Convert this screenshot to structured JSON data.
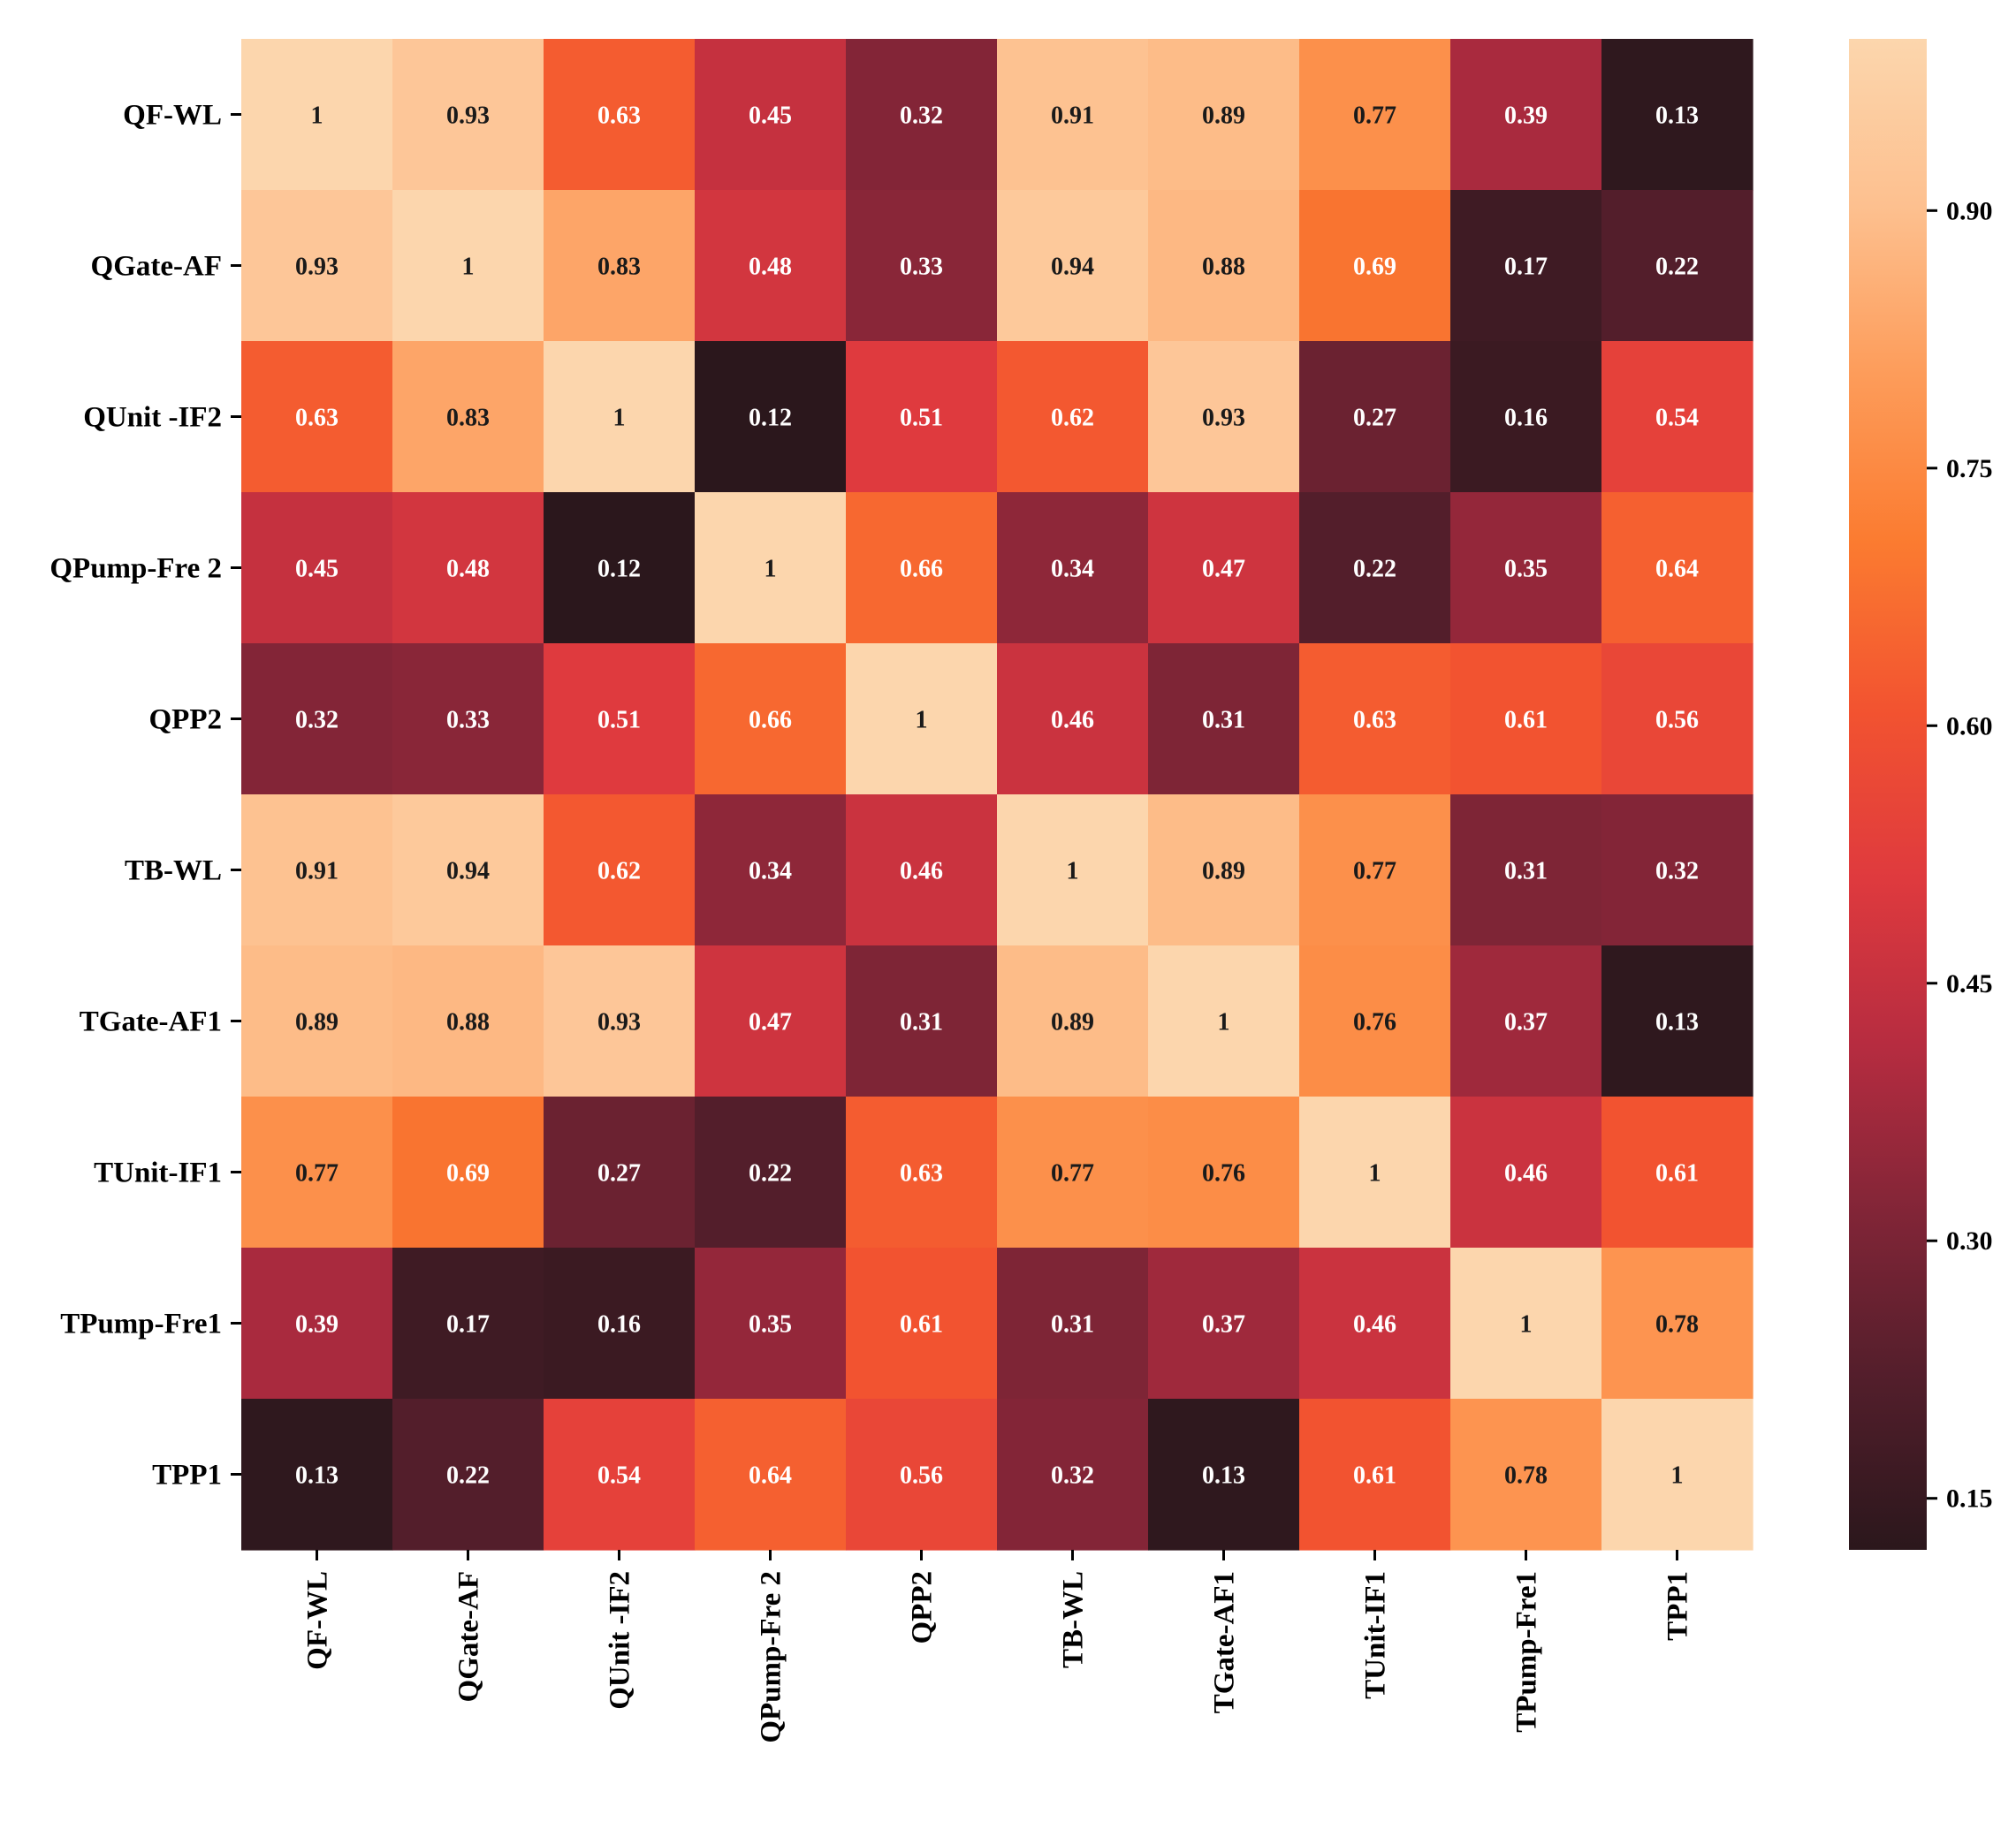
{
  "chart_data": {
    "type": "heatmap",
    "title": "",
    "xlabel": "",
    "ylabel": "",
    "row_labels": [
      "QF-WL",
      "QGate-AF",
      "QUnit -IF2",
      "QPump-Fre 2",
      "QPP2",
      "TB-WL",
      "TGate-AF1",
      "TUnit-IF1",
      "TPump-Fre1",
      "TPP1"
    ],
    "col_labels": [
      "QF-WL",
      "QGate-AF",
      "QUnit -IF2",
      "QPump-Fre 2",
      "QPP2",
      "TB-WL",
      "TGate-AF1",
      "TUnit-IF1",
      "TPump-Fre1",
      "TPP1"
    ],
    "values": [
      [
        1,
        0.93,
        0.63,
        0.45,
        0.32,
        0.91,
        0.89,
        0.77,
        0.39,
        0.13
      ],
      [
        0.93,
        1,
        0.83,
        0.48,
        0.33,
        0.94,
        0.88,
        0.69,
        0.17,
        0.22
      ],
      [
        0.63,
        0.83,
        1,
        0.12,
        0.51,
        0.62,
        0.93,
        0.27,
        0.16,
        0.54
      ],
      [
        0.45,
        0.48,
        0.12,
        1,
        0.66,
        0.34,
        0.47,
        0.22,
        0.35,
        0.64
      ],
      [
        0.32,
        0.33,
        0.51,
        0.66,
        1,
        0.46,
        0.31,
        0.63,
        0.61,
        0.56
      ],
      [
        0.91,
        0.94,
        0.62,
        0.34,
        0.46,
        1,
        0.89,
        0.77,
        0.31,
        0.32
      ],
      [
        0.89,
        0.88,
        0.93,
        0.47,
        0.31,
        0.89,
        1,
        0.76,
        0.37,
        0.13
      ],
      [
        0.77,
        0.69,
        0.27,
        0.22,
        0.63,
        0.77,
        0.76,
        1,
        0.46,
        0.61
      ],
      [
        0.39,
        0.17,
        0.16,
        0.35,
        0.61,
        0.31,
        0.37,
        0.46,
        1,
        0.78
      ],
      [
        0.13,
        0.22,
        0.54,
        0.64,
        0.56,
        0.32,
        0.13,
        0.61,
        0.78,
        1
      ]
    ],
    "cell_labels": [
      [
        "1",
        "0.93",
        "0.63",
        "0.45",
        "0.32",
        "0.91",
        "0.89",
        "0.77",
        "0.39",
        "0.13"
      ],
      [
        "0.93",
        "1",
        "0.83",
        "0.48",
        "0.33",
        "0.94",
        "0.88",
        "0.69",
        "0.17",
        "0.22"
      ],
      [
        "0.63",
        "0.83",
        "1",
        "0.12",
        "0.51",
        "0.62",
        "0.93",
        "0.27",
        "0.16",
        "0.54"
      ],
      [
        "0.45",
        "0.48",
        "0.12",
        "1",
        "0.66",
        "0.34",
        "0.47",
        "0.22",
        "0.35",
        "0.64"
      ],
      [
        "0.32",
        "0.33",
        "0.51",
        "0.66",
        "1",
        "0.46",
        "0.31",
        "0.63",
        "0.61",
        "0.56"
      ],
      [
        "0.91",
        "0.94",
        "0.62",
        "0.34",
        "0.46",
        "1",
        "0.89",
        "0.77",
        "0.31",
        "0.32"
      ],
      [
        "0.89",
        "0.88",
        "0.93",
        "0.47",
        "0.31",
        "0.89",
        "1",
        "0.76",
        "0.37",
        "0.13"
      ],
      [
        "0.77",
        "0.69",
        "0.27",
        "0.22",
        "0.63",
        "0.77",
        "0.76",
        "1",
        "0.46",
        "0.61"
      ],
      [
        "0.39",
        "0.17",
        "0.16",
        "0.35",
        "0.61",
        "0.31",
        "0.37",
        "0.46",
        "1",
        "0.78"
      ],
      [
        "0.13",
        "0.22",
        "0.54",
        "0.64",
        "0.56",
        "0.32",
        "0.13",
        "0.61",
        "0.78",
        "1"
      ]
    ],
    "value_range": [
      0.12,
      1.0
    ],
    "colorbar": {
      "tick_values": [
        0.15,
        0.3,
        0.45,
        0.6,
        0.75,
        0.9
      ],
      "tick_labels": [
        "0.15",
        "0.30",
        "0.45",
        "0.60",
        "0.75",
        "0.90"
      ]
    },
    "colormap": [
      "#2b171c",
      "#521e2b",
      "#812537",
      "#b62c40",
      "#df3a3e",
      "#f25330",
      "#fb7b30",
      "#fd9c5a",
      "#fdc08f",
      "#fcd6ad"
    ],
    "grid": false,
    "legend": "colorbar-right"
  }
}
